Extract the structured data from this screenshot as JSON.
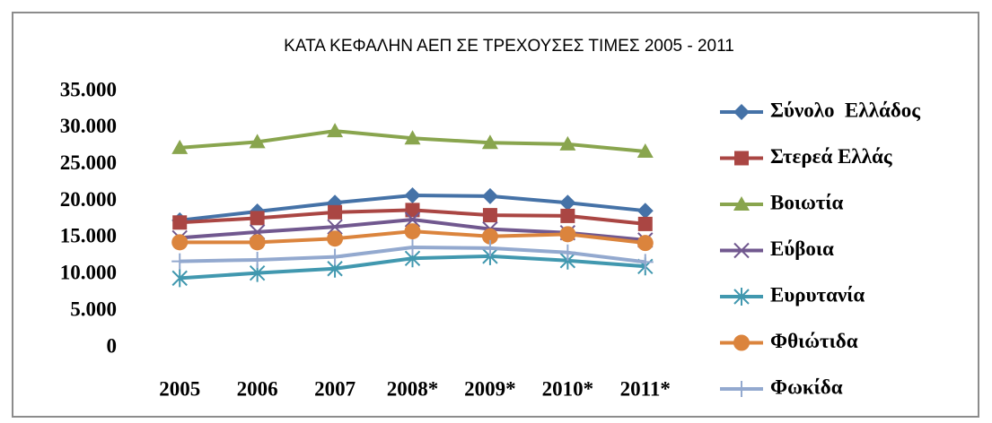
{
  "chart_data": {
    "type": "line",
    "title": "ΚΑΤΑ ΚΕΦΑΛΗΝ ΑΕΠ ΣΕ ΤΡΕΧΟΥΣΕΣ ΤΙΜΕΣ 2005 - 2011",
    "categories": [
      "2005",
      "2006",
      "2007",
      "2008*",
      "2009*",
      "2010*",
      "2011*"
    ],
    "ylim": [
      0,
      35000
    ],
    "yticks": [
      0,
      {
        "value": 5000,
        "label": "5.000"
      },
      {
        "value": 10000,
        "label": "10.000"
      },
      {
        "value": 15000,
        "label": "15.000"
      },
      {
        "value": 20000,
        "label": "20.000"
      },
      {
        "value": 25000,
        "label": "25.000"
      },
      {
        "value": 30000,
        "label": "30.000"
      },
      {
        "value": 35000,
        "label": "35.000"
      }
    ],
    "grid": false,
    "legend": "right",
    "series": [
      {
        "name": "Σύνολο  Ελλάδος",
        "color": "#4572a7",
        "marker": "diamond",
        "values": [
          17400,
          18600,
          19800,
          20800,
          20700,
          19800,
          18700
        ]
      },
      {
        "name": "Στερεά Ελλάς",
        "color": "#aa4643",
        "marker": "square",
        "values": [
          17100,
          17700,
          18500,
          18800,
          18100,
          18000,
          16900
        ]
      },
      {
        "name": "Βοιωτία",
        "color": "#89a54e",
        "marker": "triangle",
        "values": [
          27300,
          28100,
          29600,
          28600,
          28000,
          27800,
          26800
        ]
      },
      {
        "name": "Εύβοια",
        "color": "#71588f",
        "marker": "x",
        "values": [
          15000,
          15800,
          16500,
          17500,
          16200,
          15700,
          14700
        ]
      },
      {
        "name": "Ευρυτανία",
        "color": "#4198af",
        "marker": "asterisk",
        "values": [
          9500,
          10200,
          10800,
          12200,
          12500,
          11900,
          11100
        ]
      },
      {
        "name": "Φθιώτιδα",
        "color": "#db843d",
        "marker": "circle",
        "values": [
          14400,
          14400,
          14900,
          15900,
          15200,
          15500,
          14300
        ]
      },
      {
        "name": "Φωκίδα",
        "color": "#93a9cf",
        "marker": "plus",
        "values": [
          11800,
          12000,
          12400,
          13700,
          13600,
          13000,
          11700
        ]
      }
    ]
  }
}
